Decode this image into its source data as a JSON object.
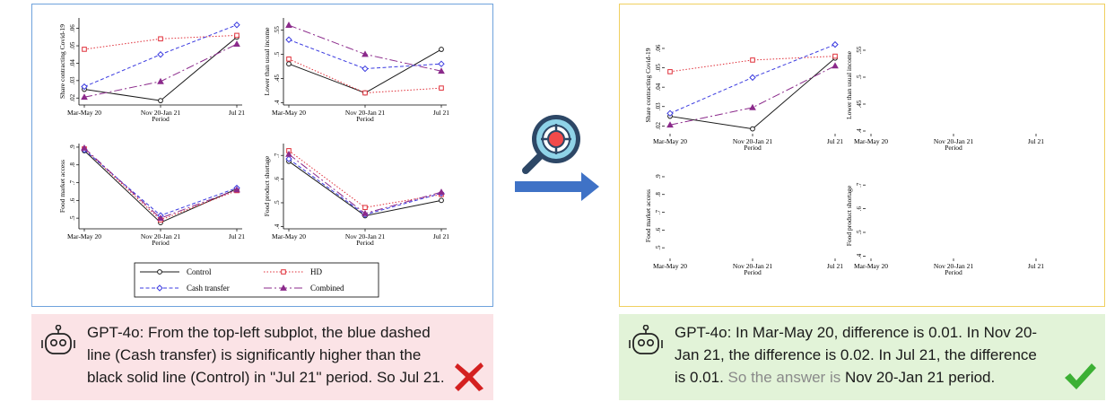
{
  "x_ticks": [
    "Mar-May 20",
    "Nov 20-Jan 21",
    "Jul 21"
  ],
  "x_label": "Period",
  "subplots": {
    "covid": {
      "ylabel": "Share contracting Covid-19",
      "ticks": [
        ".02",
        ".03",
        ".04",
        ".05",
        ".06"
      ]
    },
    "income": {
      "ylabel": "Lower than usual income",
      "ticks": [
        ".4",
        ".45",
        ".5",
        ".55"
      ]
    },
    "food_access": {
      "ylabel": "Food market access",
      "ticks": [
        ".5",
        ".6",
        ".7",
        ".8",
        ".9"
      ]
    },
    "shortage": {
      "ylabel": "Food product shortage",
      "ticks": [
        ".4",
        ".5",
        ".6",
        ".7"
      ]
    }
  },
  "legend": {
    "control": "Control",
    "hd": "HD",
    "cash": "Cash transfer",
    "combined": "Combined"
  },
  "colors": {
    "control": "#1a1a1a",
    "hd": "#e0303a",
    "cash": "#3b3be0",
    "combined": "#8b2a8b",
    "left_border": "#6fa2dc",
    "right_border": "#f0d060"
  },
  "chart_data": [
    {
      "type": "line",
      "panel": "left",
      "x": [
        "Mar-May 20",
        "Nov 20-Jan 21",
        "Jul 21"
      ],
      "series": [
        {
          "name": "Control",
          "values": [
            0.025,
            0.0185,
            0.055
          ]
        },
        {
          "name": "HD",
          "values": [
            0.048,
            0.054,
            0.056
          ]
        },
        {
          "name": "Cash transfer",
          "values": [
            0.0265,
            0.045,
            0.062
          ]
        },
        {
          "name": "Combined",
          "values": [
            0.0205,
            0.0295,
            0.051
          ]
        }
      ]
    },
    {
      "type": "line",
      "panel": "left",
      "x": [
        "Mar-May 20",
        "Nov 20-Jan 21",
        "Jul 21"
      ],
      "series": [
        {
          "name": "Control",
          "values": [
            0.48,
            0.42,
            0.51
          ]
        },
        {
          "name": "HD",
          "values": [
            0.49,
            0.42,
            0.43
          ]
        },
        {
          "name": "Cash transfer",
          "values": [
            0.53,
            0.47,
            0.48
          ]
        },
        {
          "name": "Combined",
          "values": [
            0.56,
            0.5,
            0.465
          ]
        }
      ]
    },
    {
      "type": "line",
      "panel": "left",
      "x": [
        "Mar-May 20",
        "Nov 20-Jan 21",
        "Jul 21"
      ],
      "series": [
        {
          "name": "Control",
          "values": [
            0.88,
            0.475,
            0.665
          ]
        },
        {
          "name": "HD",
          "values": [
            0.89,
            0.49,
            0.655
          ]
        },
        {
          "name": "Cash transfer",
          "values": [
            0.885,
            0.515,
            0.67
          ]
        },
        {
          "name": "Combined",
          "values": [
            0.895,
            0.5,
            0.66
          ]
        }
      ]
    },
    {
      "type": "line",
      "panel": "left",
      "x": [
        "Mar-May 20",
        "Nov 20-Jan 21",
        "Jul 21"
      ],
      "series": [
        {
          "name": "Control",
          "values": [
            0.675,
            0.445,
            0.51
          ]
        },
        {
          "name": "HD",
          "values": [
            0.72,
            0.48,
            0.535
          ]
        },
        {
          "name": "Cash transfer",
          "values": [
            0.685,
            0.45,
            0.54
          ]
        },
        {
          "name": "Combined",
          "values": [
            0.705,
            0.455,
            0.545
          ]
        }
      ]
    },
    {
      "type": "line",
      "panel": "right",
      "x": [
        "Mar-May 20",
        "Nov 20-Jan 21",
        "Jul 21"
      ],
      "series": [
        {
          "name": "Control",
          "values": [
            0.025,
            0.0185,
            0.055
          ]
        },
        {
          "name": "HD",
          "values": [
            0.048,
            0.054,
            0.056
          ]
        },
        {
          "name": "Cash transfer",
          "values": [
            0.0265,
            0.045,
            0.062
          ]
        },
        {
          "name": "Combined",
          "values": [
            0.0205,
            0.0295,
            0.051
          ]
        }
      ]
    }
  ],
  "captions": {
    "left": "GPT-4o: From the top-left subplot, the blue dashed line (Cash transfer) is significantly higher than the black solid line (Control) in \"Jul 21\" period. So Jul 21.",
    "right_main": "GPT-4o: In Mar-May 20, difference is 0.01. In Nov 20-Jan 21, the difference is 0.02. In Jul 21, the difference is 0.01.",
    "right_muted": "So the answer is",
    "right_answer": "Nov 20-Jan 21 period."
  }
}
